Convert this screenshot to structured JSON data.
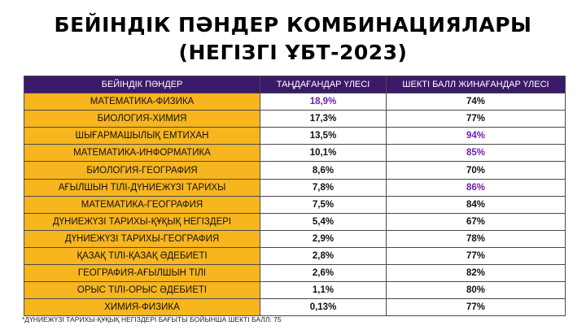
{
  "title_line1": "БЕЙІНДІК ПӘНДЕР КОМБИНАЦИЯЛАРЫ",
  "title_line2": "(НЕГІЗГІ ҰБТ-2023)",
  "colors": {
    "header": "#3c1a6a",
    "subject_cell": "#f7b51e",
    "highlight": "#6e1fb0"
  },
  "chart_data": {
    "type": "table",
    "columns": [
      "БЕЙІНДІК ПӘНДЕР",
      "ТАҢДАҒАНДАР ҮЛЕСІ",
      "ШЕКТІ БАЛЛ ЖИНАҒАНДАР ҮЛЕСІ"
    ],
    "rows": [
      {
        "subject": "МАТЕМАТИКА-ФИЗИКА",
        "share": "18,9%",
        "passed": "74%",
        "share_highlight": true,
        "passed_highlight": false
      },
      {
        "subject": "БИОЛОГИЯ-ХИМИЯ",
        "share": "17,3%",
        "passed": "77%",
        "share_highlight": false,
        "passed_highlight": false
      },
      {
        "subject": "ШЫҒАРМАШЫЛЫҚ ЕМТИХАН",
        "share": "13,5%",
        "passed": "94%",
        "share_highlight": false,
        "passed_highlight": true
      },
      {
        "subject": "МАТЕМАТИКА-ИНФОРМАТИКА",
        "share": "10,1%",
        "passed": "85%",
        "share_highlight": false,
        "passed_highlight": true
      },
      {
        "subject": "БИОЛОГИЯ-ГЕОГРАФИЯ",
        "share": "8,6%",
        "passed": "70%",
        "share_highlight": false,
        "passed_highlight": false
      },
      {
        "subject": "АҒЫЛШЫН ТІЛІ-ДҮНИЕЖҮЗІ ТАРИХЫ",
        "share": "7,8%",
        "passed": "86%",
        "share_highlight": false,
        "passed_highlight": true
      },
      {
        "subject": "МАТЕМАТИКА-ГЕОГРАФИЯ",
        "share": "7,5%",
        "passed": "84%",
        "share_highlight": false,
        "passed_highlight": false
      },
      {
        "subject": "ДҮНИЕЖҮЗІ ТАРИХЫ-ҚҰҚЫҚ НЕГІЗДЕРІ",
        "share": "5,4%",
        "passed": "67%",
        "share_highlight": false,
        "passed_highlight": false
      },
      {
        "subject": "ДҮНИЕЖҮЗІ ТАРИХЫ-ГЕОГРАФИЯ",
        "share": "2,9%",
        "passed": "78%",
        "share_highlight": false,
        "passed_highlight": false
      },
      {
        "subject": "ҚАЗАҚ ТІЛІ-ҚАЗАҚ ӘДЕБИЕТІ",
        "share": "2,8%",
        "passed": "77%",
        "share_highlight": false,
        "passed_highlight": false
      },
      {
        "subject": "ГЕОГРАФИЯ-АҒЫЛШЫН ТІЛІ",
        "share": "2,6%",
        "passed": "82%",
        "share_highlight": false,
        "passed_highlight": false
      },
      {
        "subject": "ОРЫС ТІЛІ-ОРЫС ӘДЕБИЕТІ",
        "share": "1,1%",
        "passed": "80%",
        "share_highlight": false,
        "passed_highlight": false
      },
      {
        "subject": "ХИМИЯ-ФИЗИКА",
        "share": "0,13%",
        "passed": "77%",
        "share_highlight": false,
        "passed_highlight": false
      }
    ]
  },
  "footnote": "*ДҮНИЕЖҮЗІ ТАРИХЫ-ҚҰҚЫҚ НЕГІЗДЕРІ БАҒЫТЫ БОЙЫНША ШЕКТІ БАЛЛ: 75"
}
